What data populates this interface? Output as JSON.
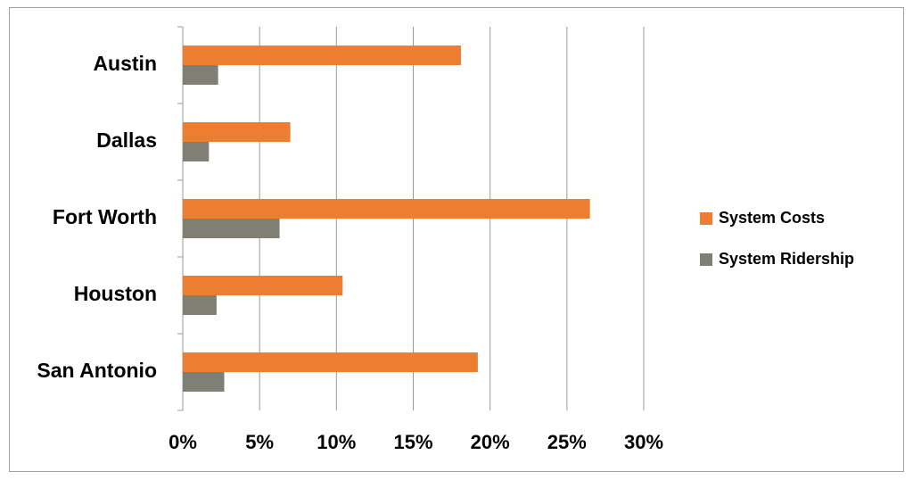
{
  "chart_data": {
    "type": "hbar",
    "categories": [
      "Austin",
      "Dallas",
      "Fort Worth",
      "Houston",
      "San Antonio"
    ],
    "series": [
      {
        "name": "System Costs",
        "color": "#ed7d31",
        "values": [
          18.1,
          7.0,
          26.5,
          10.4,
          19.2
        ]
      },
      {
        "name": "System Ridership",
        "color": "#7f7f73",
        "values": [
          2.3,
          1.7,
          6.3,
          2.2,
          2.7
        ]
      }
    ],
    "xlim": [
      0,
      30
    ],
    "xticks": [
      {
        "value": 0,
        "label": "0%"
      },
      {
        "value": 5,
        "label": "5%"
      },
      {
        "value": 10,
        "label": "10%"
      },
      {
        "value": 15,
        "label": "15%"
      },
      {
        "value": 20,
        "label": "20%"
      },
      {
        "value": 25,
        "label": "25%"
      },
      {
        "value": 30,
        "label": "30%"
      }
    ],
    "grid": true,
    "legend": "right"
  }
}
